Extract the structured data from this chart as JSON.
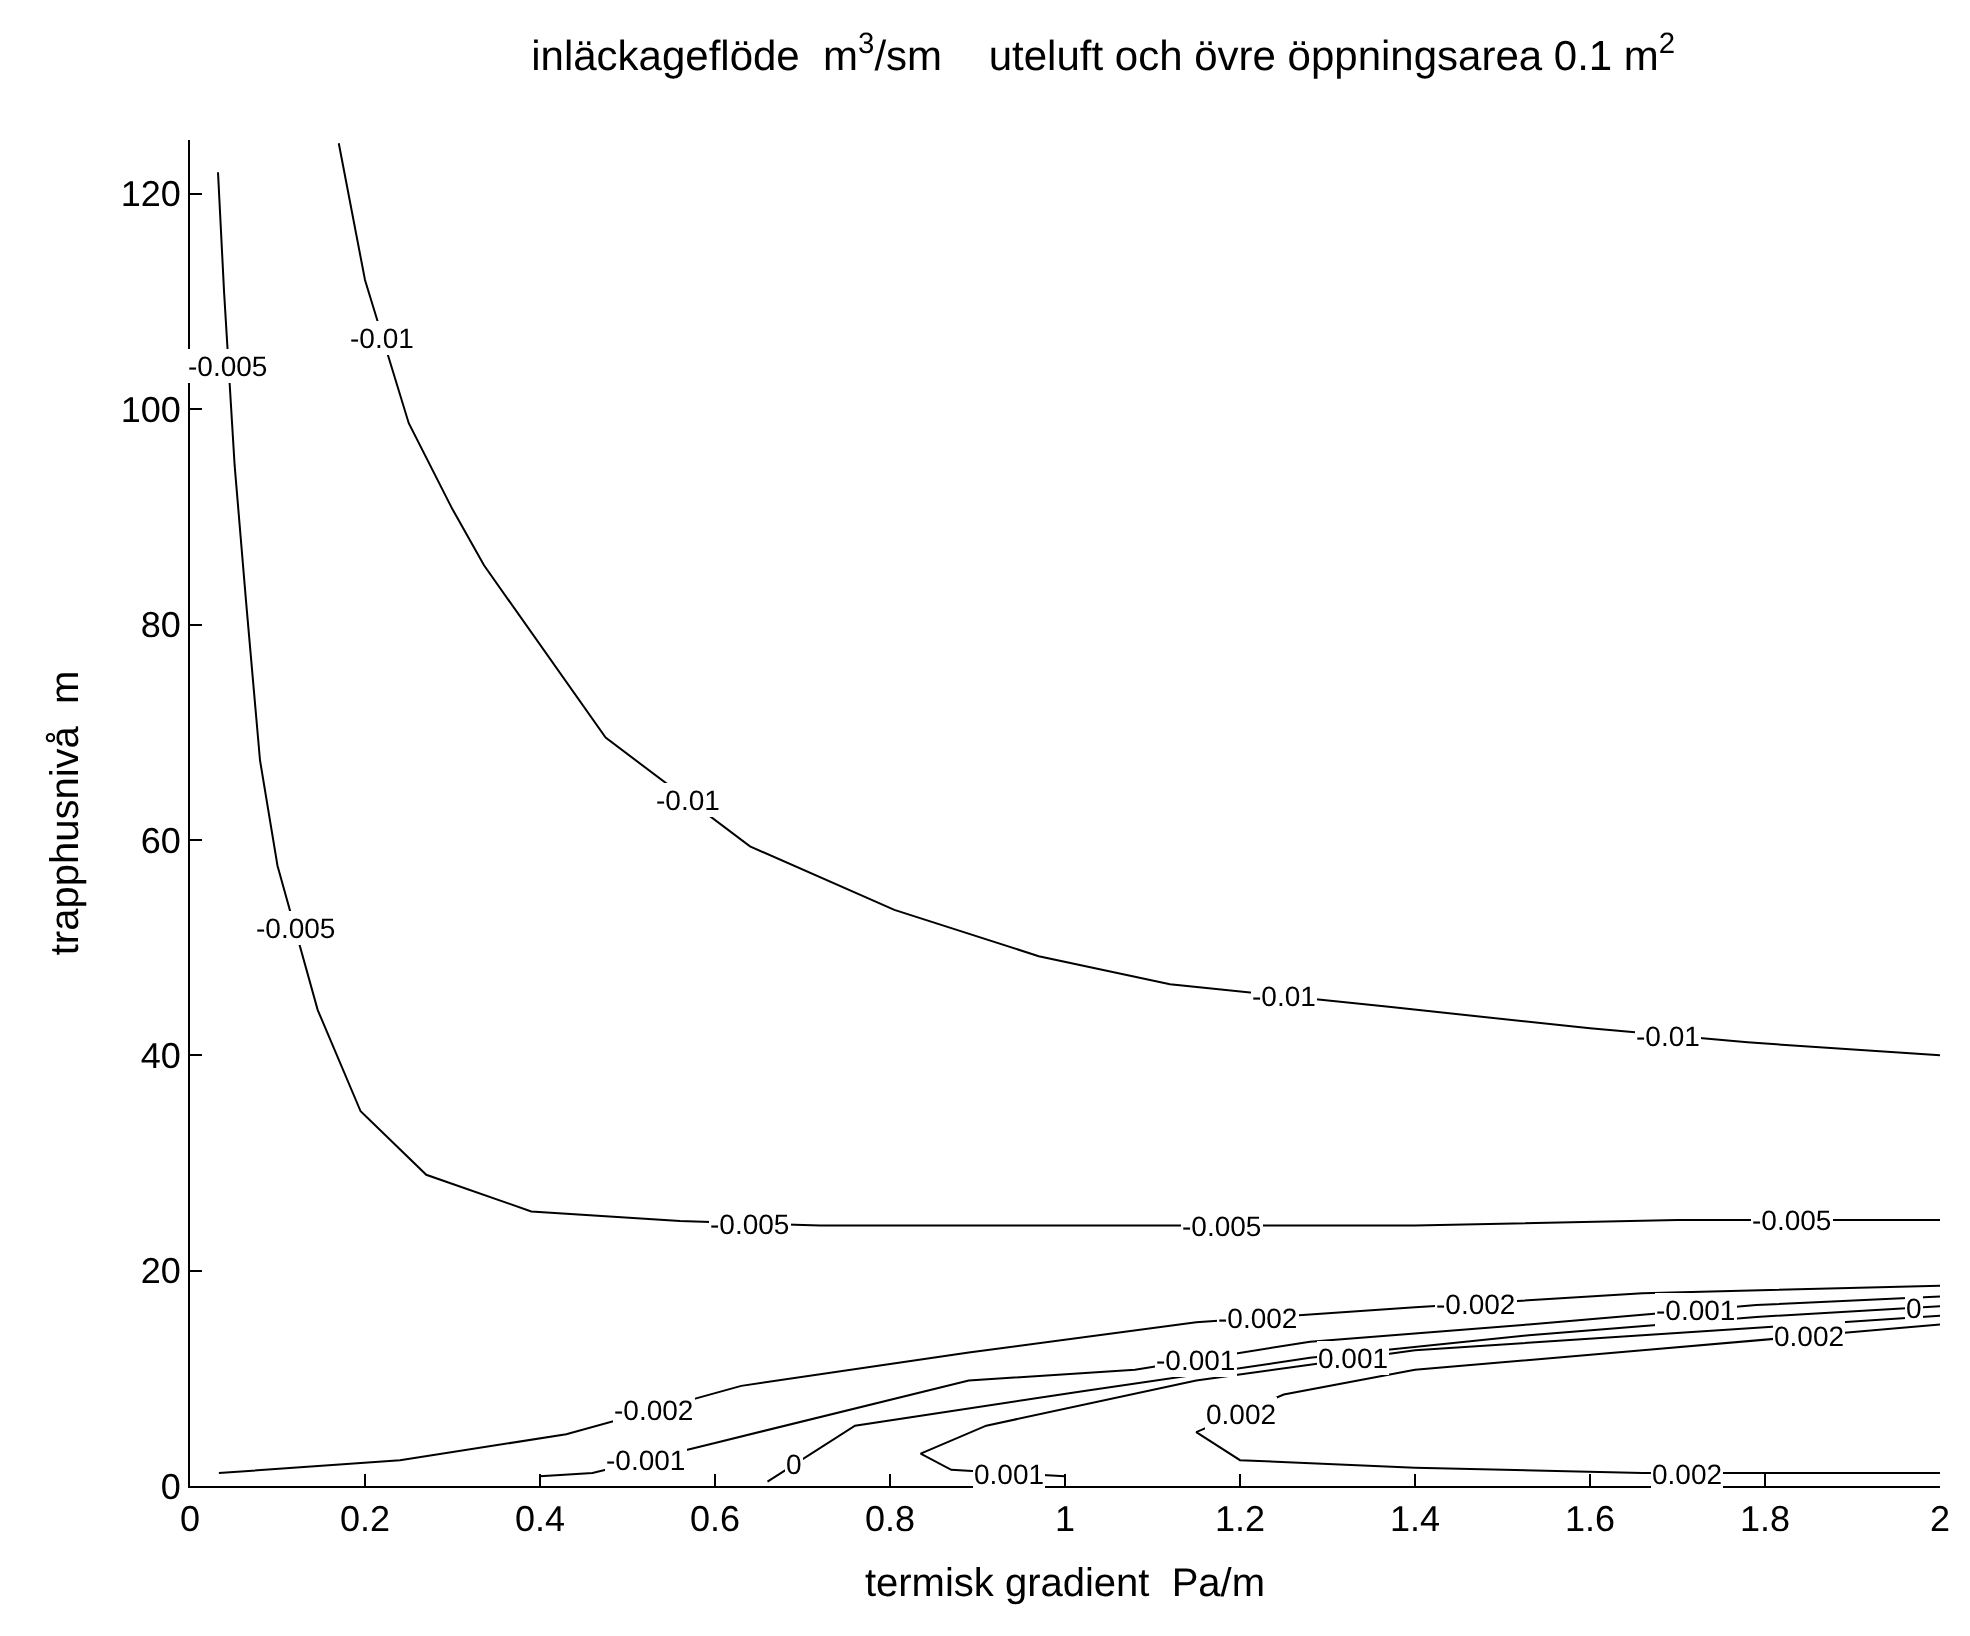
{
  "chart_data": {
    "type": "line",
    "title": "inläckageflöde  m$^{3}$/sm    uteluft och övre öppningsarea 0.1 m$^{2}$",
    "xlabel": "termisk gradient  Pa/m",
    "ylabel": "trapphusnivå  m",
    "xlim": [
      0,
      2
    ],
    "ylim": [
      0,
      125
    ],
    "xticks": [
      0,
      0.2,
      0.4,
      0.6,
      0.8,
      1,
      1.2,
      1.4,
      1.6,
      1.8,
      2
    ],
    "yticks": [
      0,
      20,
      40,
      60,
      80,
      100,
      120
    ],
    "marker": "none",
    "line_style": "solid",
    "series": [
      {
        "color": "#000000",
        "x": [
          0.17,
          0.2,
          0.25,
          0.3,
          0.336,
          0.475,
          0.64,
          0.805,
          0.97,
          1.12,
          1.37,
          1.6,
          1.78,
          2.0
        ],
        "values": [
          124.7,
          112,
          98.7,
          90.7,
          85.5,
          69.5,
          59.4,
          53.5,
          49.2,
          46.6,
          44.5,
          42.5,
          41.2,
          40
        ]
      },
      {
        "color": "#000000",
        "x": [
          0.032,
          0.039,
          0.051,
          0.064,
          0.08,
          0.1,
          0.146,
          0.195,
          0.27,
          0.39,
          0.56,
          0.72,
          1.0,
          1.4,
          1.7,
          2.0
        ],
        "values": [
          122,
          110.8,
          94.8,
          82.2,
          67.4,
          57.6,
          44.2,
          34.8,
          28.9,
          25.5,
          24.6,
          24.2,
          24.2,
          24.2,
          24.7,
          24.7
        ]
      },
      {
        "color": "#000000",
        "x": [
          0.033,
          0.24,
          0.43,
          0.63,
          0.89,
          1.15,
          1.4,
          1.66,
          2.0
        ],
        "values": [
          1.2,
          2.4,
          4.8,
          9.3,
          12.4,
          15.2,
          16.6,
          17.9,
          18.6
        ]
      },
      {
        "color": "#000000",
        "x": [
          0.4,
          0.46,
          0.6,
          0.89,
          1.08,
          1.28,
          1.53,
          1.79,
          2.0
        ],
        "values": [
          0.9,
          1.2,
          4,
          9.8,
          10.8,
          13.4,
          15,
          16.8,
          17.6
        ]
      },
      {
        "color": "#000000",
        "x": [
          0.66,
          0.76,
          1.02,
          1.28,
          1.53,
          1.79,
          2.0
        ],
        "values": [
          0.4,
          5.6,
          8.8,
          11.9,
          14,
          15.7,
          16.7
        ]
      },
      {
        "color": "#000000",
        "x": [
          1.0,
          0.87,
          0.835,
          0.91,
          1.15,
          1.4,
          1.66,
          2.0
        ],
        "values": [
          0.9,
          1.5,
          3,
          5.6,
          9.8,
          12.6,
          14,
          15.8
        ]
      },
      {
        "color": "#000000",
        "x": [
          2.0,
          1.66,
          1.4,
          1.2,
          1.15,
          1.25,
          1.4,
          1.66,
          2.0
        ],
        "values": [
          1.2,
          1.2,
          1.7,
          2.4,
          5,
          8.5,
          10.8,
          12.6,
          15
        ]
      }
    ],
    "annotations": [
      {
        "text": "-0.005",
        "x": 0.044,
        "y": 104
      },
      {
        "text": "-0.005",
        "x": 0.12,
        "y": 51.8
      },
      {
        "text": "-0.005",
        "x": 0.64,
        "y": 24.4
      },
      {
        "text": "-0.005",
        "x": 1.18,
        "y": 24.2
      },
      {
        "text": "-0.005",
        "x": 1.83,
        "y": 24.7
      },
      {
        "text": "-0.01",
        "x": 0.22,
        "y": 106.7
      },
      {
        "text": "-0.01",
        "x": 0.57,
        "y": 63.7
      },
      {
        "text": "-0.01",
        "x": 1.25,
        "y": 45.5
      },
      {
        "text": "-0.01",
        "x": 1.69,
        "y": 41.85
      },
      {
        "text": "-0.002",
        "x": 0.53,
        "y": 7.05
      },
      {
        "text": "-0.002",
        "x": 1.22,
        "y": 15.6
      },
      {
        "text": "-0.002",
        "x": 1.47,
        "y": 16.95
      },
      {
        "text": "-0.001",
        "x": 0.52,
        "y": 2.4
      },
      {
        "text": "-0.001",
        "x": 1.15,
        "y": 11.7
      },
      {
        "text": "-0.001",
        "x": 1.72,
        "y": 16.3
      },
      {
        "text": "0",
        "x": 0.69,
        "y": 2
      },
      {
        "text": "0",
        "x": 1.97,
        "y": 16.6
      },
      {
        "text": "0.001",
        "x": 0.935,
        "y": 1.2
      },
      {
        "text": "0.001",
        "x": 1.33,
        "y": 11.8
      },
      {
        "text": "0.002",
        "x": 1.2,
        "y": 6.75
      },
      {
        "text": "0.002",
        "x": 1.85,
        "y": 13.9
      },
      {
        "text": "0.002",
        "x": 1.71,
        "y": 1.2
      }
    ]
  }
}
